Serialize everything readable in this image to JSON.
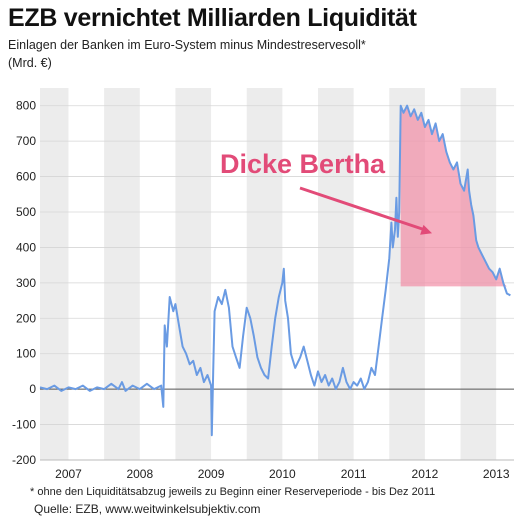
{
  "chart_data": {
    "type": "line",
    "title": "EZB vernichtet Milliarden Liquidität",
    "subtitle": "Einlagen der Banken im Euro-System minus Mindestreservesoll*",
    "ylabel": "(Mrd. €)",
    "ylim": [
      -200,
      850
    ],
    "yticks": [
      800,
      700,
      600,
      500,
      400,
      300,
      200,
      100,
      0,
      -100,
      -200
    ],
    "xlim": [
      2006.6,
      2013.25
    ],
    "year_labels": [
      {
        "label": "2007",
        "x": 2007.0
      },
      {
        "label": "2008",
        "x": 2008.0
      },
      {
        "label": "2009",
        "x": 2009.0
      },
      {
        "label": "2010",
        "x": 2010.0
      },
      {
        "label": "2011",
        "x": 2011.0
      },
      {
        "label": "2012",
        "x": 2012.0
      },
      {
        "label": "2013",
        "x": 2013.0
      }
    ],
    "shaded_years": [
      [
        2006.6,
        2007.0
      ],
      [
        2007.5,
        2008.0
      ],
      [
        2008.5,
        2009.0
      ],
      [
        2009.5,
        2010.0
      ],
      [
        2010.5,
        2011.0
      ],
      [
        2011.5,
        2012.0
      ],
      [
        2012.5,
        2013.0
      ]
    ],
    "grid": "horizontal",
    "series": [
      {
        "color": "#6a9be3",
        "points": [
          [
            2006.6,
            5
          ],
          [
            2006.7,
            0
          ],
          [
            2006.8,
            10
          ],
          [
            2006.9,
            -5
          ],
          [
            2007.0,
            5
          ],
          [
            2007.1,
            0
          ],
          [
            2007.2,
            10
          ],
          [
            2007.3,
            -5
          ],
          [
            2007.4,
            5
          ],
          [
            2007.5,
            0
          ],
          [
            2007.6,
            15
          ],
          [
            2007.7,
            0
          ],
          [
            2007.75,
            20
          ],
          [
            2007.8,
            -5
          ],
          [
            2007.9,
            10
          ],
          [
            2008.0,
            0
          ],
          [
            2008.1,
            15
          ],
          [
            2008.2,
            0
          ],
          [
            2008.3,
            10
          ],
          [
            2008.33,
            -50
          ],
          [
            2008.35,
            180
          ],
          [
            2008.38,
            120
          ],
          [
            2008.42,
            260
          ],
          [
            2008.47,
            220
          ],
          [
            2008.5,
            240
          ],
          [
            2008.55,
            180
          ],
          [
            2008.6,
            120
          ],
          [
            2008.65,
            100
          ],
          [
            2008.7,
            70
          ],
          [
            2008.75,
            80
          ],
          [
            2008.8,
            40
          ],
          [
            2008.85,
            60
          ],
          [
            2008.9,
            20
          ],
          [
            2008.95,
            40
          ],
          [
            2009.0,
            10
          ],
          [
            2009.01,
            -130
          ],
          [
            2009.03,
            50
          ],
          [
            2009.05,
            220
          ],
          [
            2009.1,
            260
          ],
          [
            2009.15,
            240
          ],
          [
            2009.2,
            280
          ],
          [
            2009.25,
            230
          ],
          [
            2009.3,
            120
          ],
          [
            2009.35,
            90
          ],
          [
            2009.4,
            60
          ],
          [
            2009.45,
            150
          ],
          [
            2009.5,
            230
          ],
          [
            2009.55,
            200
          ],
          [
            2009.6,
            150
          ],
          [
            2009.65,
            90
          ],
          [
            2009.7,
            60
          ],
          [
            2009.75,
            40
          ],
          [
            2009.8,
            30
          ],
          [
            2009.85,
            120
          ],
          [
            2009.9,
            200
          ],
          [
            2009.95,
            260
          ],
          [
            2010.0,
            300
          ],
          [
            2010.02,
            340
          ],
          [
            2010.04,
            250
          ],
          [
            2010.08,
            200
          ],
          [
            2010.12,
            100
          ],
          [
            2010.18,
            60
          ],
          [
            2010.25,
            90
          ],
          [
            2010.3,
            120
          ],
          [
            2010.35,
            80
          ],
          [
            2010.4,
            40
          ],
          [
            2010.45,
            10
          ],
          [
            2010.5,
            50
          ],
          [
            2010.55,
            20
          ],
          [
            2010.6,
            40
          ],
          [
            2010.65,
            10
          ],
          [
            2010.7,
            30
          ],
          [
            2010.75,
            0
          ],
          [
            2010.8,
            20
          ],
          [
            2010.85,
            60
          ],
          [
            2010.9,
            20
          ],
          [
            2010.95,
            0
          ],
          [
            2011.0,
            20
          ],
          [
            2011.05,
            10
          ],
          [
            2011.1,
            30
          ],
          [
            2011.15,
            0
          ],
          [
            2011.2,
            20
          ],
          [
            2011.25,
            60
          ],
          [
            2011.3,
            40
          ],
          [
            2011.35,
            120
          ],
          [
            2011.4,
            200
          ],
          [
            2011.45,
            280
          ],
          [
            2011.5,
            370
          ],
          [
            2011.53,
            470
          ],
          [
            2011.55,
            400
          ],
          [
            2011.58,
            450
          ],
          [
            2011.6,
            540
          ],
          [
            2011.62,
            430
          ],
          [
            2011.64,
            500
          ],
          [
            2011.66,
            800
          ],
          [
            2011.7,
            780
          ],
          [
            2011.75,
            800
          ],
          [
            2011.8,
            770
          ],
          [
            2011.85,
            790
          ],
          [
            2011.9,
            760
          ],
          [
            2011.95,
            780
          ],
          [
            2012.0,
            740
          ],
          [
            2012.05,
            760
          ],
          [
            2012.1,
            720
          ],
          [
            2012.15,
            750
          ],
          [
            2012.2,
            700
          ],
          [
            2012.25,
            720
          ],
          [
            2012.3,
            670
          ],
          [
            2012.35,
            640
          ],
          [
            2012.4,
            620
          ],
          [
            2012.45,
            640
          ],
          [
            2012.5,
            580
          ],
          [
            2012.55,
            560
          ],
          [
            2012.6,
            620
          ],
          [
            2012.62,
            560
          ],
          [
            2012.65,
            520
          ],
          [
            2012.68,
            490
          ],
          [
            2012.72,
            420
          ],
          [
            2012.75,
            400
          ],
          [
            2012.8,
            380
          ],
          [
            2012.85,
            360
          ],
          [
            2012.9,
            340
          ],
          [
            2012.95,
            330
          ],
          [
            2013.0,
            310
          ],
          [
            2013.05,
            340
          ],
          [
            2013.1,
            300
          ],
          [
            2013.15,
            270
          ],
          [
            2013.2,
            265
          ]
        ]
      }
    ],
    "highlight_area": {
      "color": "#f28fa6",
      "baseline": 290,
      "x_start": 2011.66,
      "x_end": 2013.2
    },
    "annotation": {
      "text": "Dicke Bertha",
      "color": "#e24b78",
      "arrow_from": [
        2011.6,
        505
      ],
      "arrow_to": [
        2012.1,
        440
      ]
    }
  },
  "footnote": "* ohne den Liquiditätsabzug jeweils zu Beginn einer Reserveperiode - bis Dez 2011",
  "source": "Quelle: EZB, www.weitwinkelsubjektiv.com"
}
